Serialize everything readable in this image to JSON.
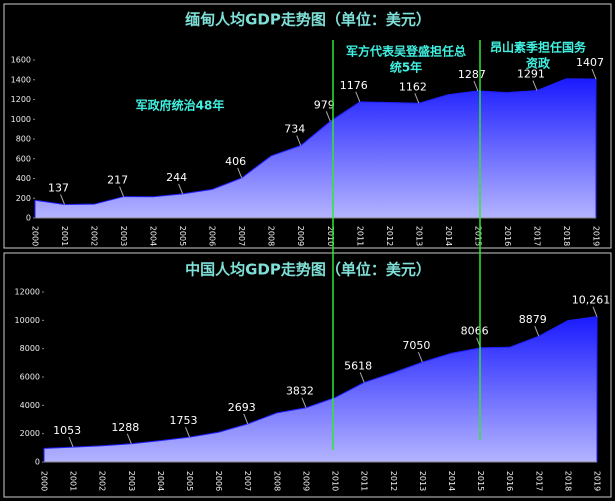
{
  "chart_data": [
    {
      "type": "area",
      "title": "缅甸人均GDP走势图（单位：美元）",
      "categories": [
        "2000",
        "2001",
        "2002",
        "2003",
        "2004",
        "2005",
        "2006",
        "2007",
        "2008",
        "2009",
        "2010",
        "2011",
        "2012",
        "2013",
        "2014",
        "2015",
        "2016",
        "2017",
        "2018",
        "2019"
      ],
      "values": [
        180,
        137,
        140,
        217,
        215,
        244,
        290,
        406,
        630,
        734,
        979,
        1176,
        1170,
        1162,
        1250,
        1287,
        1270,
        1291,
        1410,
        1407
      ],
      "value_labels": [
        null,
        "137",
        null,
        "217",
        null,
        "244",
        null,
        "406",
        null,
        "734",
        "979",
        "1176",
        null,
        "1162",
        null,
        "1287",
        null,
        "1291",
        null,
        "1407"
      ],
      "ylim": [
        0,
        1600
      ],
      "yticks": [
        0,
        200,
        400,
        600,
        800,
        1000,
        1200,
        1400,
        1600
      ],
      "color": "#1f1fff",
      "annotations": [
        "军政府统治48年",
        "军方代表吴登盛担任总",
        "统5年",
        "昂山素季担任国务",
        "资政"
      ]
    },
    {
      "type": "area",
      "title": "中国人均GDP走势图（单位：美元）",
      "categories": [
        "2000",
        "2001",
        "2002",
        "2003",
        "2004",
        "2005",
        "2006",
        "2007",
        "2008",
        "2009",
        "2010",
        "2011",
        "2012",
        "2013",
        "2014",
        "2015",
        "2016",
        "2017",
        "2018",
        "2019"
      ],
      "values": [
        959,
        1053,
        1149,
        1288,
        1509,
        1753,
        2099,
        2693,
        3468,
        3832,
        4550,
        5618,
        6300,
        7050,
        7680,
        8066,
        8100,
        8879,
        9977,
        10261
      ],
      "value_labels": [
        null,
        "1053",
        null,
        "1288",
        null,
        "1753",
        null,
        "2693",
        null,
        "3832",
        null,
        "5618",
        null,
        "7050",
        null,
        "8066",
        null,
        "8879",
        null,
        "10,261"
      ],
      "ylim": [
        0,
        12000
      ],
      "yticks": [
        0,
        2000,
        4000,
        6000,
        8000,
        10000,
        12000
      ],
      "color": "#1f1fff"
    }
  ]
}
